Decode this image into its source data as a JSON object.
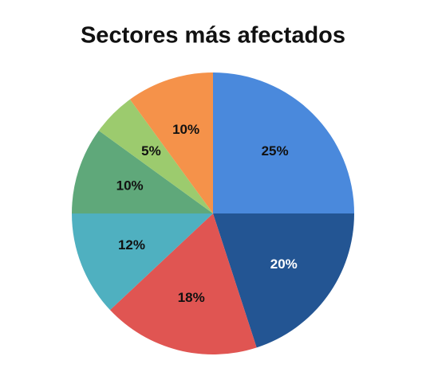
{
  "chart_data": {
    "type": "pie",
    "title": "Sectores más afectados",
    "values": [
      25,
      20,
      18,
      12,
      10,
      5,
      10
    ],
    "value_labels": [
      "25%",
      "20%",
      "18%",
      "12%",
      "10%",
      "5%",
      "10%"
    ],
    "colors": [
      "#4a89dc",
      "#235593",
      "#e05552",
      "#4fb0c0",
      "#5fa87a",
      "#9ccb6e",
      "#f5924a"
    ]
  }
}
